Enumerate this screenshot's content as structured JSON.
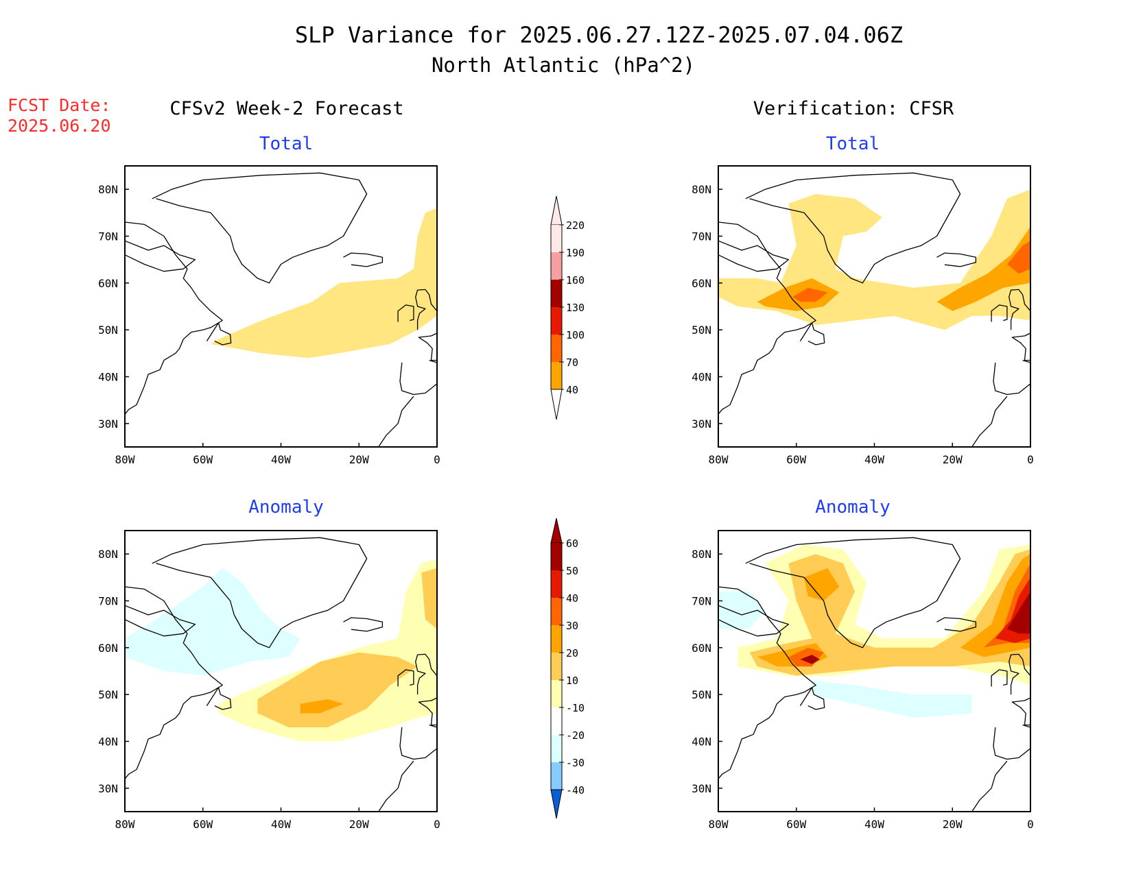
{
  "title": {
    "line1": "SLP Variance for 2025.06.27.12Z-2025.07.04.06Z",
    "line2": "North Atlantic (hPa^2)"
  },
  "fcst_date": {
    "label": "FCST Date:",
    "value": "2025.06.20"
  },
  "columns": {
    "left": "CFSv2 Week-2 Forecast",
    "right": "Verification: CFSR"
  },
  "panel_titles": {
    "total": "Total",
    "anomaly": "Anomaly"
  },
  "colors": {
    "title_red": "#ff2a2a",
    "subtitle_blue": "#1f3df0",
    "land_outline": "#000000"
  },
  "chart_data": [
    {
      "type": "map",
      "name": "forecast-total",
      "lon_ticks": [
        "80W",
        "60W",
        "40W",
        "20W",
        "0"
      ],
      "lat_ticks": [
        "80N",
        "70N",
        "60N",
        "50N",
        "40N",
        "30N"
      ],
      "lon_range": [
        -80,
        0
      ],
      "lat_range": [
        25,
        85
      ],
      "contours": [
        {
          "level": 40,
          "color": "#ffe680",
          "polygon": [
            [
              -56,
              48
            ],
            [
              -45,
              52
            ],
            [
              -32,
              56
            ],
            [
              -25,
              60
            ],
            [
              -10,
              61
            ],
            [
              -6,
              63
            ],
            [
              -5,
              70
            ],
            [
              -3,
              75
            ],
            [
              0,
              76
            ],
            [
              0,
              53
            ],
            [
              -5,
              50
            ],
            [
              -12,
              47
            ],
            [
              -25,
              45
            ],
            [
              -33,
              44
            ],
            [
              -45,
              45
            ],
            [
              -58,
              47
            ]
          ]
        }
      ]
    },
    {
      "type": "map",
      "name": "verification-total",
      "lon_ticks": [
        "80W",
        "60W",
        "40W",
        "20W",
        "0"
      ],
      "lat_ticks": [
        "80N",
        "70N",
        "60N",
        "50N",
        "40N",
        "30N"
      ],
      "lon_range": [
        -80,
        0
      ],
      "lat_range": [
        25,
        85
      ],
      "contours": [
        {
          "level": 40,
          "color": "#ffe680",
          "polygon": [
            [
              -80,
              61
            ],
            [
              -70,
              61
            ],
            [
              -64,
              60
            ],
            [
              -60,
              68
            ],
            [
              -62,
              77
            ],
            [
              -55,
              79
            ],
            [
              -45,
              78
            ],
            [
              -38,
              74
            ],
            [
              -42,
              71
            ],
            [
              -48,
              70
            ],
            [
              -50,
              63
            ],
            [
              -45,
              61
            ],
            [
              -30,
              59
            ],
            [
              -18,
              60
            ],
            [
              -10,
              70
            ],
            [
              -6,
              78
            ],
            [
              0,
              80
            ],
            [
              0,
              52
            ],
            [
              -8,
              53
            ],
            [
              -15,
              53
            ],
            [
              -22,
              50
            ],
            [
              -35,
              53
            ],
            [
              -45,
              52
            ],
            [
              -55,
              51
            ],
            [
              -65,
              54
            ],
            [
              -75,
              55
            ],
            [
              -80,
              57
            ]
          ]
        },
        {
          "level": 70,
          "color": "#ffa500",
          "polygon": [
            [
              -70,
              56
            ],
            [
              -63,
              59
            ],
            [
              -56,
              61
            ],
            [
              -49,
              58
            ],
            [
              -53,
              55
            ],
            [
              -60,
              54
            ],
            [
              -68,
              55
            ]
          ]
        },
        {
          "level": 70,
          "color": "#ffa500",
          "polygon": [
            [
              -24,
              56
            ],
            [
              -18,
              59
            ],
            [
              -11,
              62
            ],
            [
              -5,
              66
            ],
            [
              0,
              72
            ],
            [
              0,
              60
            ],
            [
              -7,
              59
            ],
            [
              -14,
              56
            ],
            [
              -20,
              54
            ]
          ]
        },
        {
          "level": 100,
          "color": "#ff6600",
          "polygon": [
            [
              -61,
              57
            ],
            [
              -57,
              59
            ],
            [
              -52,
              58
            ],
            [
              -55,
              56
            ],
            [
              -59,
              56
            ]
          ]
        },
        {
          "level": 100,
          "color": "#ff6600",
          "polygon": [
            [
              -6,
              64
            ],
            [
              -2,
              68
            ],
            [
              0,
              69
            ],
            [
              0,
              63
            ],
            [
              -3,
              62
            ]
          ]
        }
      ]
    },
    {
      "type": "map",
      "name": "forecast-anomaly",
      "lon_ticks": [
        "80W",
        "60W",
        "40W",
        "20W",
        "0"
      ],
      "lat_ticks": [
        "80N",
        "70N",
        "60N",
        "50N",
        "40N",
        "30N"
      ],
      "lon_range": [
        -80,
        0
      ],
      "lat_range": [
        25,
        85
      ],
      "contours": [
        {
          "level": -10,
          "color": "#ddffff",
          "polygon": [
            [
              -80,
              62
            ],
            [
              -72,
              66
            ],
            [
              -60,
              73
            ],
            [
              -55,
              77
            ],
            [
              -50,
              74
            ],
            [
              -45,
              68
            ],
            [
              -40,
              64
            ],
            [
              -35,
              62
            ],
            [
              -38,
              58
            ],
            [
              -48,
              57
            ],
            [
              -60,
              54
            ],
            [
              -70,
              55
            ],
            [
              -80,
              58
            ]
          ]
        },
        {
          "level": 10,
          "color": "#ffffb3",
          "polygon": [
            [
              -56,
              48
            ],
            [
              -45,
              52
            ],
            [
              -30,
              57
            ],
            [
              -20,
              60
            ],
            [
              -10,
              62
            ],
            [
              -8,
              72
            ],
            [
              -4,
              78
            ],
            [
              0,
              79
            ],
            [
              0,
              46
            ],
            [
              -5,
              45
            ],
            [
              -12,
              43
            ],
            [
              -25,
              40
            ],
            [
              -35,
              40
            ],
            [
              -48,
              43
            ],
            [
              -56,
              46
            ]
          ]
        },
        {
          "level": 20,
          "color": "#ffcc55",
          "polygon": [
            [
              -46,
              49
            ],
            [
              -38,
              53
            ],
            [
              -30,
              57
            ],
            [
              -20,
              59
            ],
            [
              -10,
              58
            ],
            [
              -5,
              56
            ],
            [
              -12,
              52
            ],
            [
              -18,
              47
            ],
            [
              -28,
              43
            ],
            [
              -38,
              43
            ],
            [
              -46,
              46
            ]
          ]
        },
        {
          "level": 20,
          "color": "#ffcc55",
          "polygon": [
            [
              -4,
              76
            ],
            [
              0,
              77
            ],
            [
              0,
              64
            ],
            [
              -3,
              66
            ]
          ]
        },
        {
          "level": 30,
          "color": "#ffa500",
          "polygon": [
            [
              -35,
              48
            ],
            [
              -28,
              49
            ],
            [
              -24,
              48
            ],
            [
              -30,
              46
            ],
            [
              -35,
              46
            ]
          ]
        }
      ]
    },
    {
      "type": "map",
      "name": "verification-anomaly",
      "lon_ticks": [
        "80W",
        "60W",
        "40W",
        "20W",
        "0"
      ],
      "lat_ticks": [
        "80N",
        "70N",
        "60N",
        "50N",
        "40N",
        "30N"
      ],
      "lon_range": [
        -80,
        0
      ],
      "lat_range": [
        25,
        85
      ],
      "contours": [
        {
          "level": -10,
          "color": "#ddffff",
          "polygon": [
            [
              -56,
              53
            ],
            [
              -45,
              52
            ],
            [
              -30,
              50
            ],
            [
              -15,
              50
            ],
            [
              -15,
              46
            ],
            [
              -30,
              45
            ],
            [
              -45,
              48
            ],
            [
              -56,
              50
            ]
          ]
        },
        {
          "level": -10,
          "color": "#ddffff",
          "polygon": [
            [
              -80,
              72
            ],
            [
              -72,
              72
            ],
            [
              -68,
              68
            ],
            [
              -72,
              64
            ],
            [
              -80,
              64
            ]
          ]
        },
        {
          "level": 10,
          "color": "#ffffb3",
          "polygon": [
            [
              -75,
              60
            ],
            [
              -65,
              62
            ],
            [
              -62,
              70
            ],
            [
              -68,
              78
            ],
            [
              -58,
              82
            ],
            [
              -48,
              81
            ],
            [
              -42,
              74
            ],
            [
              -45,
              65
            ],
            [
              -38,
              62
            ],
            [
              -22,
              62
            ],
            [
              -12,
              72
            ],
            [
              -8,
              81
            ],
            [
              0,
              82
            ],
            [
              0,
              52
            ],
            [
              -8,
              54
            ],
            [
              -20,
              56
            ],
            [
              -35,
              56
            ],
            [
              -50,
              54
            ],
            [
              -62,
              54
            ],
            [
              -75,
              56
            ]
          ]
        },
        {
          "level": 20,
          "color": "#ffcc55",
          "polygon": [
            [
              -72,
              59
            ],
            [
              -62,
              61
            ],
            [
              -56,
              62
            ],
            [
              -60,
              70
            ],
            [
              -62,
              78
            ],
            [
              -55,
              80
            ],
            [
              -48,
              78
            ],
            [
              -45,
              72
            ],
            [
              -50,
              63
            ],
            [
              -40,
              60
            ],
            [
              -25,
              60
            ],
            [
              -15,
              65
            ],
            [
              -8,
              74
            ],
            [
              -4,
              80
            ],
            [
              0,
              81
            ],
            [
              0,
              56
            ],
            [
              -8,
              57
            ],
            [
              -20,
              56
            ],
            [
              -35,
              56
            ],
            [
              -48,
              55
            ],
            [
              -60,
              54
            ],
            [
              -70,
              56
            ]
          ]
        },
        {
          "level": 30,
          "color": "#ffa500",
          "polygon": [
            [
              -70,
              58
            ],
            [
              -60,
              60
            ],
            [
              -55,
              61
            ],
            [
              -52,
              58
            ],
            [
              -57,
              56
            ],
            [
              -65,
              56
            ]
          ]
        },
        {
          "level": 30,
          "color": "#ffa500",
          "polygon": [
            [
              -58,
              75
            ],
            [
              -52,
              77
            ],
            [
              -49,
              73
            ],
            [
              -53,
              70
            ],
            [
              -57,
              71
            ]
          ]
        },
        {
          "level": 30,
          "color": "#ffa500",
          "polygon": [
            [
              -18,
              60
            ],
            [
              -10,
              65
            ],
            [
              -6,
              74
            ],
            [
              -2,
              79
            ],
            [
              0,
              80
            ],
            [
              0,
              60
            ],
            [
              -6,
              59
            ],
            [
              -12,
              58
            ]
          ]
        },
        {
          "level": 40,
          "color": "#ff6600",
          "polygon": [
            [
              -62,
              58
            ],
            [
              -57,
              60
            ],
            [
              -53,
              59
            ],
            [
              -56,
              56
            ],
            [
              -60,
              56
            ]
          ]
        },
        {
          "level": 40,
          "color": "#ff6600",
          "polygon": [
            [
              -12,
              60
            ],
            [
              -7,
              64
            ],
            [
              -4,
              72
            ],
            [
              0,
              78
            ],
            [
              0,
              61
            ],
            [
              -6,
              61
            ]
          ]
        },
        {
          "level": 50,
          "color": "#e61a00",
          "polygon": [
            [
              -9,
              62
            ],
            [
              -5,
              66
            ],
            [
              -3,
              71
            ],
            [
              0,
              75
            ],
            [
              0,
              62
            ],
            [
              -4,
              61
            ]
          ]
        },
        {
          "level": 60,
          "color": "#a50000",
          "polygon": [
            [
              -6,
              64
            ],
            [
              -3,
              68
            ],
            [
              0,
              72
            ],
            [
              0,
              63
            ],
            [
              -3,
              63
            ]
          ]
        },
        {
          "level": 60,
          "color": "#a50000",
          "polygon": [
            [
              -59,
              57.5
            ],
            [
              -56,
              58.5
            ],
            [
              -54,
              57.5
            ],
            [
              -56,
              56.5
            ]
          ]
        }
      ]
    }
  ],
  "colorbars": [
    {
      "name": "total-colorbar",
      "levels": [
        "220",
        "190",
        "160",
        "130",
        "100",
        "70",
        "40"
      ],
      "colors": [
        "#ffe8e8",
        "#f4a0a0",
        "#a50000",
        "#e61a00",
        "#ff6600",
        "#ffa500",
        "#ffe680"
      ]
    },
    {
      "name": "anomaly-colorbar",
      "levels": [
        "60",
        "50",
        "40",
        "30",
        "20",
        "10",
        "-10",
        "-20",
        "-30",
        "-40"
      ],
      "colors": [
        "#a50000",
        "#e61a00",
        "#ff6600",
        "#ffa500",
        "#ffcc55",
        "#ffffb3",
        "#ffffff",
        "#ddffff",
        "#88ccff",
        "#2b83ff",
        "#0a5fd6"
      ]
    }
  ]
}
